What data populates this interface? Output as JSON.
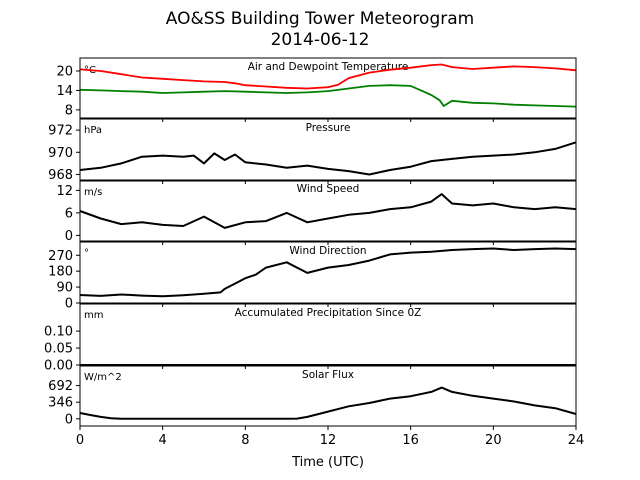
{
  "figure": {
    "title_line1": "AO&SS Building Tower Meteorogram",
    "title_line2": "2014-06-12",
    "xlabel": "Time (UTC)",
    "xlim": [
      0,
      24
    ],
    "xticks": [
      0,
      4,
      8,
      12,
      16,
      20,
      24
    ],
    "xtick_labels": [
      "0",
      "4",
      "8",
      "12",
      "16",
      "20",
      "24"
    ]
  },
  "chart_data": [
    {
      "type": "line",
      "title": "Air and Dewpoint Temperature",
      "unit": "°C",
      "ylim": [
        5.5,
        24
      ],
      "yticks": [
        8,
        14,
        20
      ],
      "ytick_labels": [
        "8",
        "14",
        "20"
      ],
      "series": [
        {
          "color": "#ff0000",
          "x": [
            0,
            1,
            2,
            3,
            4,
            5,
            6,
            7,
            7.5,
            8,
            9,
            10,
            11,
            12,
            12.5,
            13,
            14,
            15,
            16,
            17,
            17.5,
            18,
            19,
            20,
            21,
            22,
            23,
            24
          ],
          "y": [
            20.5,
            20.0,
            19.0,
            18.0,
            17.6,
            17.2,
            16.8,
            16.6,
            16.2,
            15.6,
            15.2,
            14.8,
            14.6,
            15.0,
            15.8,
            17.8,
            19.5,
            20.4,
            21.0,
            21.8,
            22.0,
            21.2,
            20.6,
            21.0,
            21.4,
            21.2,
            20.8,
            20.2
          ]
        },
        {
          "color": "#008000",
          "x": [
            0,
            1,
            2,
            3,
            4,
            5,
            6,
            7,
            8,
            9,
            10,
            11,
            12,
            13,
            14,
            15,
            16,
            16.5,
            17,
            17.4,
            17.6,
            18,
            19,
            20,
            21,
            22,
            23,
            24
          ],
          "y": [
            14.2,
            14.0,
            13.8,
            13.6,
            13.2,
            13.4,
            13.6,
            13.8,
            13.6,
            13.4,
            13.2,
            13.4,
            13.8,
            14.6,
            15.4,
            15.6,
            15.4,
            14.0,
            12.6,
            11.0,
            9.2,
            10.8,
            10.2,
            10.0,
            9.6,
            9.4,
            9.2,
            9.0
          ]
        }
      ]
    },
    {
      "type": "line",
      "title": "Pressure",
      "unit": "hPa",
      "ylim": [
        967.5,
        973.0
      ],
      "yticks": [
        968,
        970,
        972
      ],
      "ytick_labels": [
        "968",
        "970",
        "972"
      ],
      "series": [
        {
          "color": "#000000",
          "x": [
            0,
            1,
            2,
            3,
            4,
            5,
            5.5,
            6,
            6.5,
            7,
            7.5,
            8,
            9,
            10,
            11,
            12,
            13,
            14,
            15,
            16,
            17,
            18,
            19,
            20,
            21,
            22,
            23,
            24
          ],
          "y": [
            968.4,
            968.6,
            969.0,
            969.6,
            969.7,
            969.6,
            969.7,
            969.0,
            969.9,
            969.3,
            969.8,
            969.1,
            968.9,
            968.6,
            968.8,
            968.5,
            968.3,
            968.0,
            968.4,
            968.7,
            969.2,
            969.4,
            969.6,
            969.7,
            969.8,
            970.0,
            970.3,
            970.9
          ]
        }
      ]
    },
    {
      "type": "line",
      "title": "Wind Speed",
      "unit": "m/s",
      "ylim": [
        -1.5,
        14.5
      ],
      "yticks": [
        0,
        6,
        12
      ],
      "ytick_labels": [
        "0",
        "6",
        "12"
      ],
      "series": [
        {
          "color": "#000000",
          "x": [
            0,
            1,
            2,
            3,
            4,
            5,
            6,
            7,
            8,
            9,
            10,
            11,
            12,
            13,
            14,
            15,
            16,
            17,
            17.5,
            18,
            19,
            20,
            21,
            22,
            23,
            24
          ],
          "y": [
            6.5,
            4.5,
            3.0,
            3.5,
            2.8,
            2.5,
            5.0,
            2.0,
            3.5,
            3.8,
            6.0,
            3.5,
            4.5,
            5.5,
            6.0,
            7.0,
            7.5,
            9.0,
            11.0,
            8.5,
            8.0,
            8.5,
            7.5,
            7.0,
            7.5,
            7.0
          ]
        }
      ]
    },
    {
      "type": "line",
      "title": "Wind Direction",
      "unit": "°",
      "ylim": [
        0,
        345
      ],
      "yticks": [
        0,
        90,
        180,
        270
      ],
      "ytick_labels": [
        "0",
        "90",
        "180",
        "270"
      ],
      "series": [
        {
          "color": "#000000",
          "x": [
            0,
            1,
            2,
            3,
            4,
            5,
            6,
            6.8,
            7.0,
            7.5,
            8.0,
            8.5,
            9,
            10,
            11,
            12,
            13,
            14,
            15,
            16,
            17,
            18,
            19,
            20,
            21,
            22,
            23,
            24
          ],
          "y": [
            45,
            40,
            48,
            42,
            38,
            44,
            52,
            60,
            80,
            110,
            140,
            160,
            200,
            230,
            170,
            200,
            215,
            240,
            275,
            285,
            290,
            300,
            305,
            308,
            300,
            305,
            308,
            305
          ]
        }
      ]
    },
    {
      "type": "line",
      "title": "Accumulated Precipitation Since 0Z",
      "unit": "mm",
      "ylim": [
        0,
        0.18
      ],
      "yticks": [
        0.0,
        0.05,
        0.1
      ],
      "ytick_labels": [
        "0.00",
        "0.05",
        "0.10"
      ],
      "series": [
        {
          "color": "#000000",
          "x": [
            0,
            24
          ],
          "y": [
            0,
            0
          ]
        }
      ]
    },
    {
      "type": "line",
      "title": "Solar Flux",
      "unit": "W/m^2",
      "ylim": [
        -150,
        1100
      ],
      "yticks": [
        0,
        346,
        692
      ],
      "ytick_labels": [
        "0",
        "346",
        "692"
      ],
      "series": [
        {
          "color": "#000000",
          "x": [
            0,
            0.5,
            1,
            1.5,
            2,
            3,
            4,
            5,
            6,
            7,
            8,
            9,
            10,
            10.5,
            11,
            12,
            13,
            14,
            15,
            16,
            17,
            17.5,
            18,
            19,
            20,
            21,
            22,
            23,
            24
          ],
          "y": [
            120,
            80,
            40,
            10,
            0,
            0,
            0,
            0,
            0,
            0,
            0,
            0,
            0,
            5,
            40,
            150,
            260,
            330,
            420,
            470,
            560,
            650,
            560,
            480,
            420,
            360,
            280,
            220,
            100
          ]
        }
      ]
    }
  ]
}
